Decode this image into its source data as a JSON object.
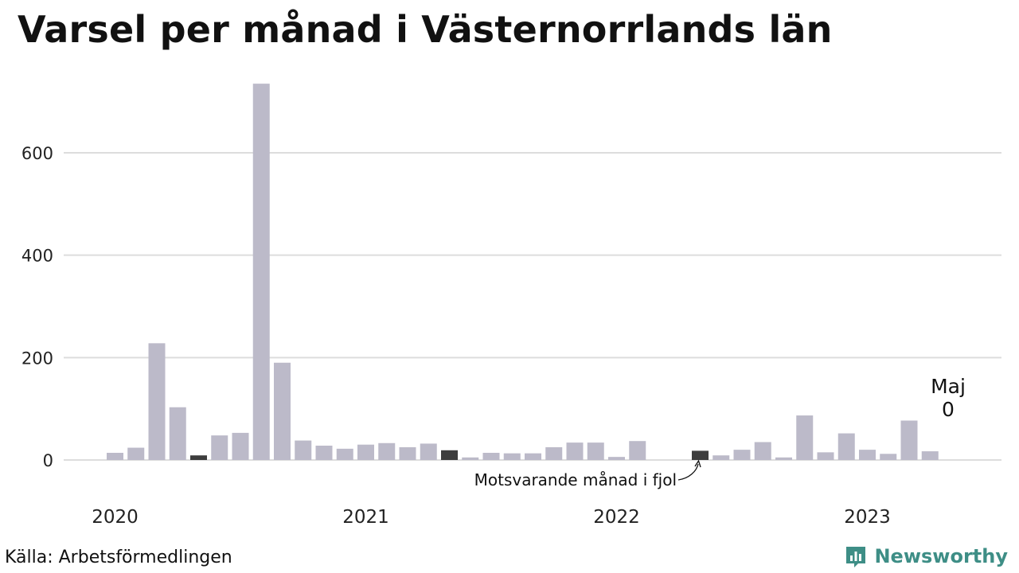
{
  "title": "Varsel per månad i Västernorrlands län",
  "source": "Källa: Arbetsförmedlingen",
  "brand": "Newsworthy",
  "annotation": "Motsvarande månad i fjol",
  "last_label": {
    "month": "Maj",
    "value": "0"
  },
  "colors": {
    "bar": "#bcbac9",
    "highlight": "#3d3d3d",
    "grid": "#dddddd",
    "brand": "#3e8e86"
  },
  "chart_data": {
    "type": "bar",
    "title": "Varsel per månad i Västernorrlands län",
    "xlabel": "",
    "ylabel": "",
    "ylim": [
      0,
      750
    ],
    "yticks": [
      0,
      200,
      400,
      600
    ],
    "xtick_labels": [
      "2020",
      "2021",
      "2022",
      "2023"
    ],
    "grid": true,
    "categories": [
      "2020-01",
      "2020-02",
      "2020-03",
      "2020-04",
      "2020-05",
      "2020-06",
      "2020-07",
      "2020-08",
      "2020-09",
      "2020-10",
      "2020-11",
      "2020-12",
      "2021-01",
      "2021-02",
      "2021-03",
      "2021-04",
      "2021-05",
      "2021-06",
      "2021-07",
      "2021-08",
      "2021-09",
      "2021-10",
      "2021-11",
      "2021-12",
      "2022-01",
      "2022-02",
      "2022-03",
      "2022-04",
      "2022-05",
      "2022-06",
      "2022-07",
      "2022-08",
      "2022-09",
      "2022-10",
      "2022-11",
      "2022-12",
      "2023-01",
      "2023-02",
      "2023-03",
      "2023-04",
      "2023-05"
    ],
    "values": [
      14,
      24,
      228,
      103,
      9,
      48,
      53,
      735,
      190,
      38,
      28,
      22,
      30,
      33,
      25,
      32,
      19,
      5,
      14,
      13,
      13,
      25,
      34,
      34,
      6,
      37,
      0,
      0,
      18,
      9,
      20,
      35,
      5,
      87,
      15,
      52,
      20,
      12,
      77,
      17,
      0
    ],
    "highlight_categories": [
      "2020-05",
      "2021-05",
      "2022-05"
    ]
  }
}
